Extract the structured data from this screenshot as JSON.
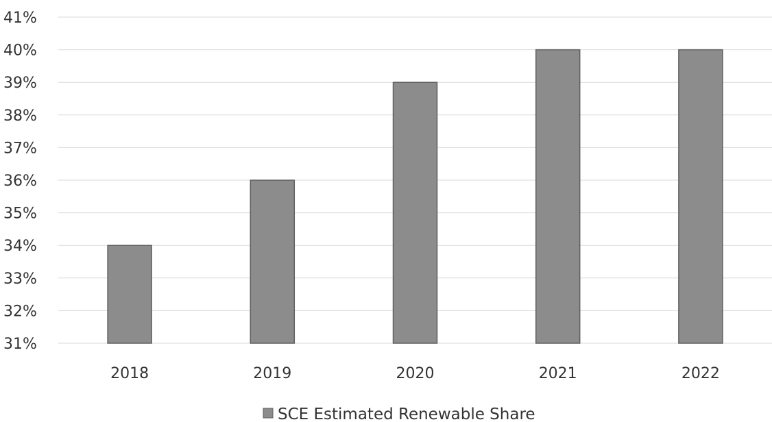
{
  "chart_data": {
    "type": "bar",
    "categories": [
      "2018",
      "2019",
      "2020",
      "2021",
      "2022"
    ],
    "series": [
      {
        "name": "SCE Estimated Renewable Share",
        "values": [
          34,
          36,
          39,
          40,
          40
        ]
      }
    ],
    "y_tick_labels": [
      "41%",
      "40%",
      "39%",
      "38%",
      "37%",
      "36%",
      "35%",
      "34%",
      "33%",
      "32%",
      "31%"
    ],
    "ylim": [
      31,
      41
    ],
    "grid": true,
    "legend_position": "bottom",
    "bar_color": "#8c8c8c",
    "bar_edge_color": "#5f5f5f",
    "grid_color": "#d9d9d9"
  }
}
